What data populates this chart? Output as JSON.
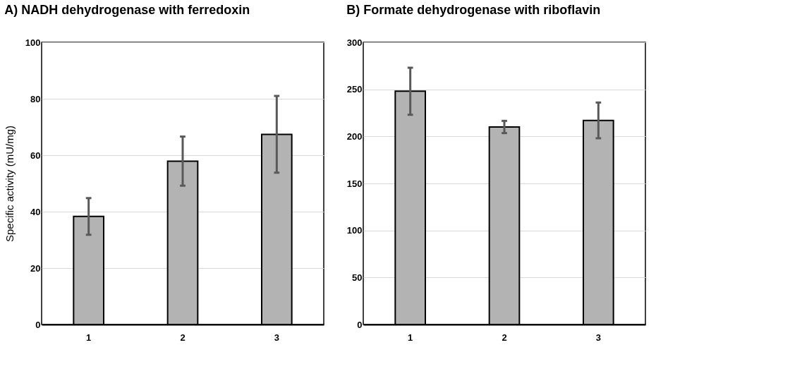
{
  "chart_data": [
    {
      "type": "bar",
      "title": "A)     NADH dehydrogenase with ferredoxin",
      "ylabel": "Specific activity  (mU/mg)",
      "categories": [
        "1",
        "2",
        "3"
      ],
      "color": "#b3b3b3",
      "values": [
        38.3,
        57.9,
        67.4
      ],
      "errors": [
        6.5,
        8.7,
        13.6
      ],
      "ylim": [
        0,
        100
      ],
      "yticks": [
        0,
        20,
        40,
        60,
        80,
        100
      ],
      "grid": "y"
    },
    {
      "type": "bar",
      "title": "B)     Formate dehydrogenase with riboflavin",
      "categories": [
        "1",
        "2",
        "3"
      ],
      "color": "#b3b3b3",
      "values": [
        248,
        210,
        217
      ],
      "errors": [
        25,
        6.5,
        19
      ],
      "ylim": [
        0,
        300
      ],
      "yticks": [
        0,
        50,
        100,
        150,
        200,
        250,
        300
      ],
      "grid": "y"
    }
  ]
}
